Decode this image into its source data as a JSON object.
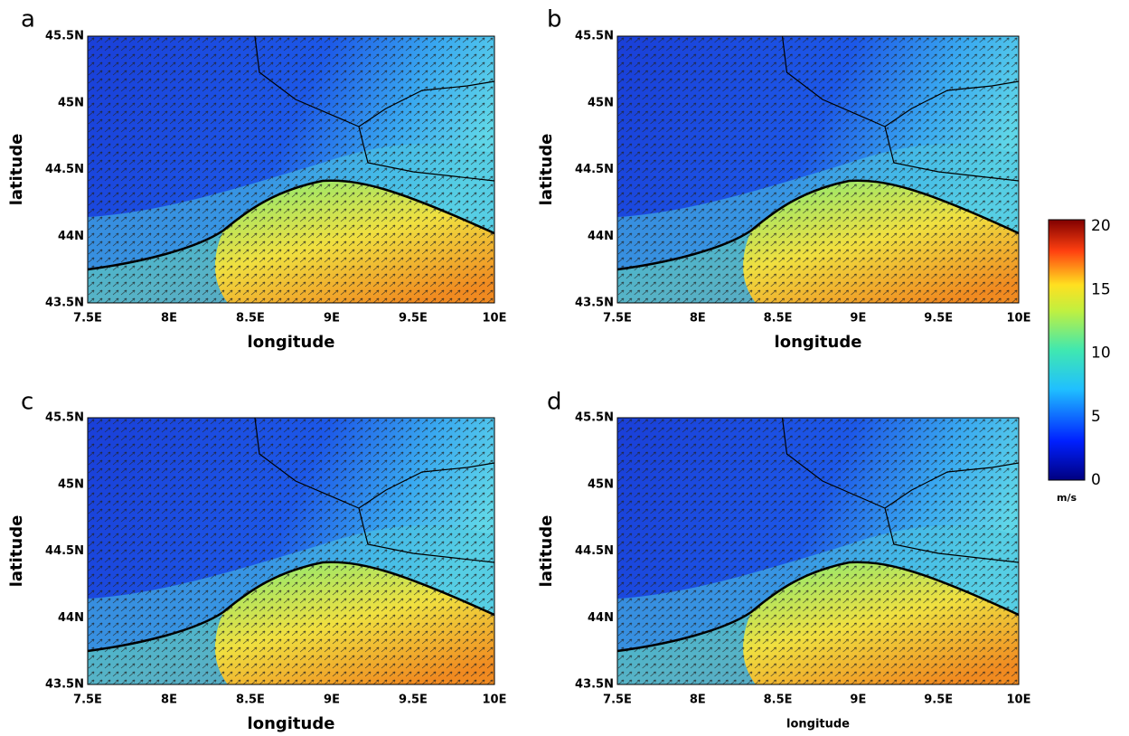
{
  "panels": [
    {
      "label": "a",
      "xlabel": "longitude",
      "ylabel": "latitude",
      "xticks": [
        "7.5E",
        "8E",
        "8.5E",
        "9E",
        "9.5E",
        "10E"
      ],
      "yticks": [
        "45.5N",
        "45N",
        "44.5N",
        "44N",
        "43.5N"
      ]
    },
    {
      "label": "b",
      "xlabel": "longitude",
      "ylabel": "latitude",
      "xticks": [
        "7.5E",
        "8E",
        "8.5E",
        "9E",
        "9.5E",
        "10E"
      ],
      "yticks": [
        "45.5N",
        "45N",
        "44.5N",
        "44N",
        "43.5N"
      ]
    },
    {
      "label": "c",
      "xlabel": "longitude",
      "ylabel": "latitude",
      "xticks": [
        "7.5E",
        "8E",
        "8.5E",
        "9E",
        "9.5E",
        "10E"
      ],
      "yticks": [
        "45.5N",
        "45N",
        "44.5N",
        "44N",
        "43.5N"
      ]
    },
    {
      "label": "d",
      "xlabel": "longitude",
      "ylabel": "latitude",
      "xticks": [
        "7.5E",
        "8E",
        "8.5E",
        "9E",
        "9.5E",
        "10E"
      ],
      "yticks": [
        "45.5N",
        "45N",
        "44.5N",
        "44N",
        "43.5N"
      ]
    }
  ],
  "colorbar": {
    "ticks": [
      20,
      15,
      10,
      5,
      0
    ],
    "unit": "m/s"
  }
}
